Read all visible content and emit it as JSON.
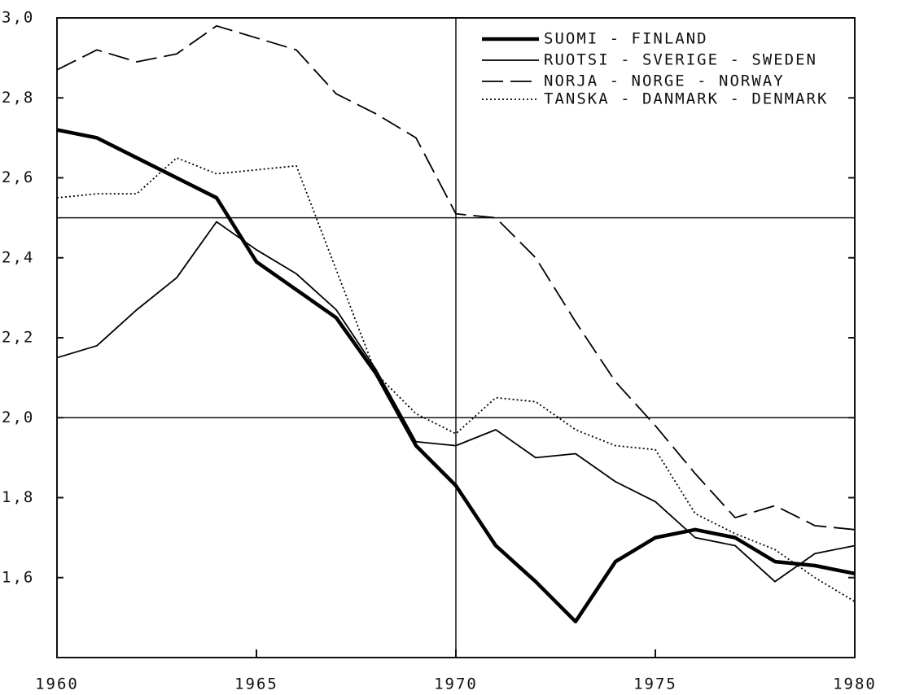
{
  "chart_data": {
    "type": "line",
    "x": [
      1960,
      1961,
      1962,
      1963,
      1964,
      1965,
      1966,
      1967,
      1968,
      1969,
      1970,
      1971,
      1972,
      1973,
      1974,
      1975,
      1976,
      1977,
      1978,
      1979,
      1980
    ],
    "xlim": [
      1960,
      1980
    ],
    "xticks": [
      1960,
      1965,
      1970,
      1975,
      1980
    ],
    "ylim": [
      1.4,
      3.0
    ],
    "yticks": [
      {
        "value": 1.6,
        "label": "1,6"
      },
      {
        "value": 1.8,
        "label": "1,8"
      },
      {
        "value": 2.0,
        "label": "2,0"
      },
      {
        "value": 2.2,
        "label": "2,2"
      },
      {
        "value": 2.4,
        "label": "2,4"
      },
      {
        "value": 2.6,
        "label": "2,6"
      },
      {
        "value": 2.8,
        "label": "2,8"
      },
      {
        "value": 3.0,
        "label": "3,0"
      }
    ],
    "hlines": [
      2.5,
      2.0
    ],
    "vlines": [
      1970
    ],
    "legend": "upper right",
    "series": [
      {
        "name": "SUOMI - FINLAND",
        "color": "#000000",
        "style": "thick",
        "values": [
          2.72,
          2.7,
          2.65,
          2.6,
          2.55,
          2.39,
          2.32,
          2.25,
          2.11,
          1.93,
          1.83,
          1.68,
          1.59,
          1.49,
          1.64,
          1.7,
          1.72,
          1.7,
          1.64,
          1.63,
          1.61
        ]
      },
      {
        "name": "RUOTSI - SVERIGE - SWEDEN",
        "color": "#000000",
        "style": "solid",
        "values": [
          2.15,
          2.18,
          2.27,
          2.35,
          2.49,
          2.42,
          2.36,
          2.27,
          2.12,
          1.94,
          1.93,
          1.97,
          1.9,
          1.91,
          1.84,
          1.79,
          1.7,
          1.68,
          1.59,
          1.66,
          1.68
        ]
      },
      {
        "name": "NORJA - NORGE - NORWAY",
        "color": "#000000",
        "style": "dashed",
        "values": [
          2.87,
          2.92,
          2.89,
          2.91,
          2.98,
          2.95,
          2.92,
          2.81,
          2.76,
          2.7,
          2.51,
          2.5,
          2.4,
          2.24,
          2.09,
          1.98,
          1.86,
          1.75,
          1.78,
          1.73,
          1.72
        ]
      },
      {
        "name": "TANSKA - DANMARK - DENMARK",
        "color": "#000000",
        "style": "dotted",
        "values": [
          2.55,
          2.56,
          2.56,
          2.65,
          2.61,
          2.62,
          2.63,
          2.37,
          2.11,
          2.01,
          1.96,
          2.05,
          2.04,
          1.97,
          1.93,
          1.92,
          1.76,
          1.71,
          1.67,
          1.6,
          1.54
        ]
      }
    ]
  }
}
